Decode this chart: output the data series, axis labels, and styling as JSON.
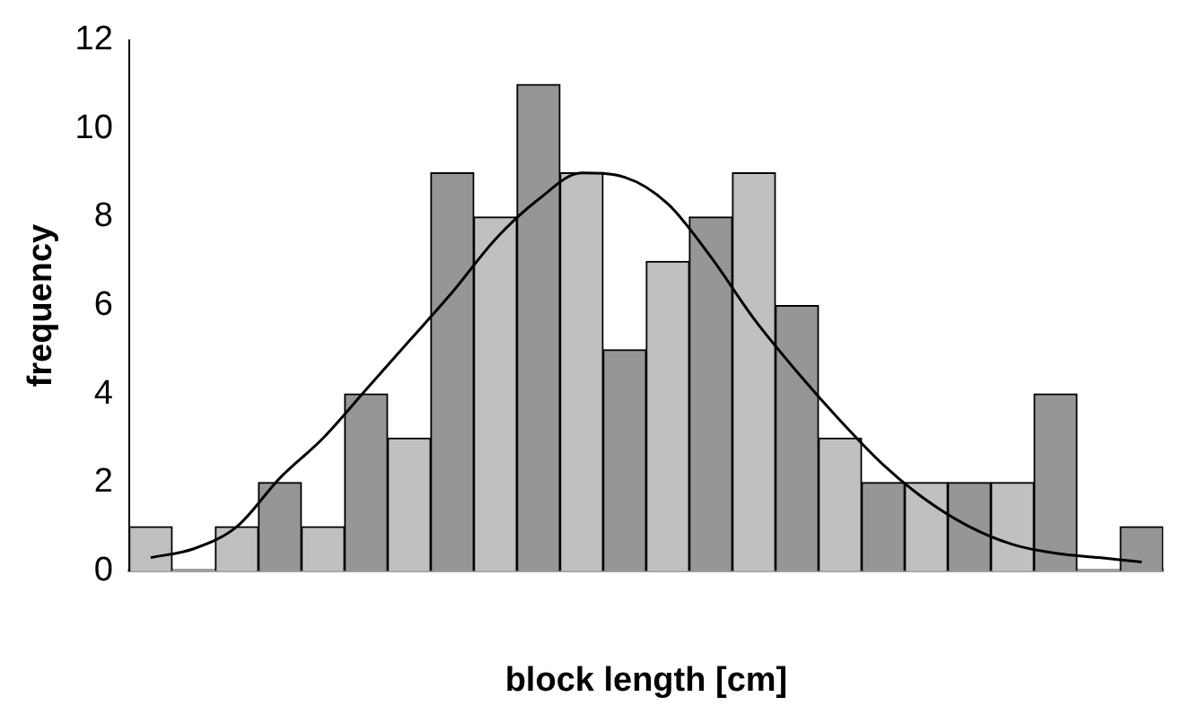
{
  "chart_data": {
    "type": "bar",
    "xlabel": "block length [cm]",
    "ylabel": "frequency",
    "categories": [
      null,
      null,
      null,
      null,
      null,
      null,
      null,
      null,
      null,
      null,
      null,
      null,
      null,
      null,
      null,
      null,
      null,
      null,
      null,
      null,
      null,
      null,
      null,
      null
    ],
    "series": [
      {
        "colors": [
          "#c0c0c0",
          "#969696",
          "#c0c0c0",
          "#969696",
          "#c0c0c0",
          "#969696",
          "#c0c0c0",
          "#969696",
          "#c0c0c0",
          "#969696",
          "#c0c0c0",
          "#969696",
          "#c0c0c0",
          "#969696",
          "#c0c0c0",
          "#969696",
          "#c0c0c0",
          "#969696",
          "#c0c0c0",
          "#969696",
          "#c0c0c0",
          "#969696",
          "#c0c0c0",
          "#969696"
        ],
        "values": [
          1,
          0,
          1,
          2,
          1,
          4,
          3,
          9,
          8,
          11,
          9,
          5,
          7,
          8,
          9,
          6,
          3,
          2,
          2,
          2,
          2,
          4,
          0,
          1
        ]
      },
      {
        "type": "line",
        "color": "#000000",
        "values": [
          0.3,
          0.5,
          1.0,
          2.1,
          3.0,
          4.1,
          5.2,
          6.3,
          7.5,
          8.4,
          9.0,
          8.9,
          8.3,
          7.1,
          5.7,
          4.5,
          3.4,
          2.4,
          1.6,
          1.0,
          0.6,
          0.4,
          0.3,
          0.2
        ]
      }
    ],
    "ylim": [
      0,
      12
    ],
    "yticks": [
      0,
      2,
      4,
      6,
      8,
      10,
      12
    ],
    "grid": false,
    "legend": false,
    "tick_labels": "y",
    "marker": "none"
  }
}
